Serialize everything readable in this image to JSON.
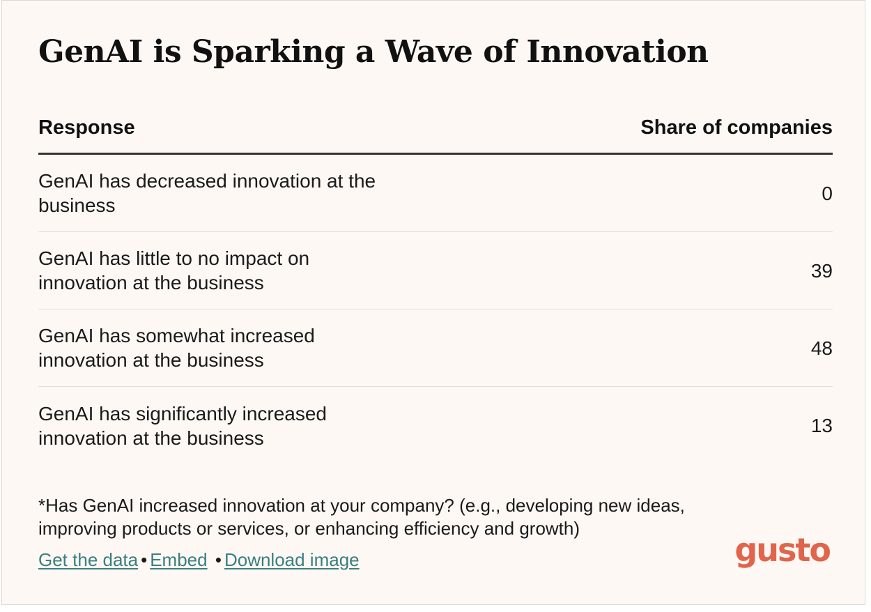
{
  "title": "GenAI is Sparking a Wave of Innovation",
  "chart_data": {
    "type": "table",
    "title": "GenAI is Sparking a Wave of Innovation",
    "columns": [
      "Response",
      "Share of companies"
    ],
    "rows": [
      {
        "response": "GenAI has decreased innovation at the business",
        "share": "0"
      },
      {
        "response": "GenAI has little to no impact on innovation at the business",
        "share": "39"
      },
      {
        "response": "GenAI has somewhat increased innovation at the business",
        "share": "48"
      },
      {
        "response": "GenAI has significantly increased innovation at the business",
        "share": "13"
      }
    ]
  },
  "footnote": "*Has GenAI increased innovation at your company? (e.g., developing new ideas, improving products or services, or enhancing efficiency and growth)",
  "links": {
    "get_data": "Get the data",
    "sep1": "•",
    "embed": "Embed",
    "sep2": "•",
    "download": "Download image"
  },
  "brand": {
    "logo_text": "gusto",
    "logo_color": "#e0654c",
    "link_color": "#3a7f80",
    "background": "#fdf8f3"
  }
}
